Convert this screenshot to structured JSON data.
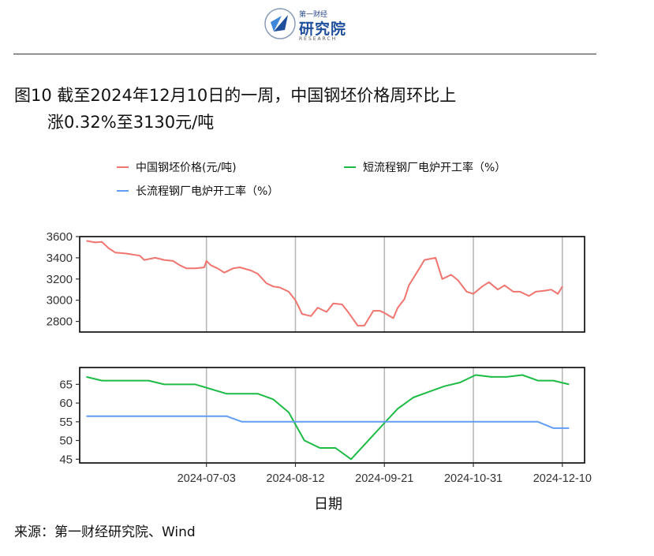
{
  "logo": {
    "top_text": "第一财经",
    "main_text": "研究院",
    "sub_text": "RESEARCH"
  },
  "title": {
    "line1": "图10  截至2024年12月10日的一周，中国钢坯价格周环比上",
    "line2": "涨0.32%至3130元/吨"
  },
  "source": "来源：第一财经研究院、Wind",
  "colors": {
    "billet": "#F0756F",
    "short_process": "#1DBB45",
    "long_process": "#629DF4",
    "grid": "#B8B8B8",
    "frame": "#000000"
  },
  "chart_data": [
    {
      "type": "line",
      "xlabel": "日期",
      "x_axis_type": "date",
      "xlim": [
        "2024-05-07",
        "2024-12-20"
      ],
      "x_tick_labels": [
        "2024-07-03",
        "2024-08-12",
        "2024-09-21",
        "2024-10-31",
        "2024-12-10"
      ],
      "ylim": [
        2700,
        3600
      ],
      "y_ticks": [
        2800,
        3000,
        3200,
        3400,
        3600
      ],
      "grid": "vertical",
      "series": [
        {
          "name": "中国钢坯价格(元/吨)",
          "color": "#F0756F",
          "points": [
            [
              "2024-05-10",
              3560
            ],
            [
              "2024-05-14",
              3545
            ],
            [
              "2024-05-17",
              3550
            ],
            [
              "2024-05-20",
              3490
            ],
            [
              "2024-05-23",
              3450
            ],
            [
              "2024-05-28",
              3440
            ],
            [
              "2024-06-03",
              3420
            ],
            [
              "2024-06-05",
              3380
            ],
            [
              "2024-06-10",
              3400
            ],
            [
              "2024-06-14",
              3380
            ],
            [
              "2024-06-18",
              3370
            ],
            [
              "2024-06-21",
              3330
            ],
            [
              "2024-06-24",
              3300
            ],
            [
              "2024-06-28",
              3300
            ],
            [
              "2024-07-02",
              3310
            ],
            [
              "2024-07-03",
              3370
            ],
            [
              "2024-07-05",
              3330
            ],
            [
              "2024-07-08",
              3300
            ],
            [
              "2024-07-11",
              3260
            ],
            [
              "2024-07-15",
              3300
            ],
            [
              "2024-07-18",
              3310
            ],
            [
              "2024-07-23",
              3280
            ],
            [
              "2024-07-26",
              3250
            ],
            [
              "2024-07-30",
              3160
            ],
            [
              "2024-08-02",
              3130
            ],
            [
              "2024-08-05",
              3120
            ],
            [
              "2024-08-09",
              3080
            ],
            [
              "2024-08-12",
              3000
            ],
            [
              "2024-08-15",
              2870
            ],
            [
              "2024-08-19",
              2850
            ],
            [
              "2024-08-22",
              2930
            ],
            [
              "2024-08-26",
              2890
            ],
            [
              "2024-08-29",
              2970
            ],
            [
              "2024-09-02",
              2960
            ],
            [
              "2024-09-05",
              2880
            ],
            [
              "2024-09-09",
              2760
            ],
            [
              "2024-09-12",
              2760
            ],
            [
              "2024-09-16",
              2900
            ],
            [
              "2024-09-19",
              2900
            ],
            [
              "2024-09-21",
              2880
            ],
            [
              "2024-09-25",
              2830
            ],
            [
              "2024-09-27",
              2930
            ],
            [
              "2024-09-30",
              3010
            ],
            [
              "2024-10-02",
              3140
            ],
            [
              "2024-10-07",
              3310
            ],
            [
              "2024-10-09",
              3380
            ],
            [
              "2024-10-14",
              3400
            ],
            [
              "2024-10-17",
              3200
            ],
            [
              "2024-10-21",
              3240
            ],
            [
              "2024-10-24",
              3190
            ],
            [
              "2024-10-28",
              3080
            ],
            [
              "2024-10-31",
              3060
            ],
            [
              "2024-11-04",
              3130
            ],
            [
              "2024-11-07",
              3170
            ],
            [
              "2024-11-11",
              3100
            ],
            [
              "2024-11-14",
              3140
            ],
            [
              "2024-11-18",
              3080
            ],
            [
              "2024-11-21",
              3080
            ],
            [
              "2024-11-25",
              3040
            ],
            [
              "2024-11-28",
              3080
            ],
            [
              "2024-12-02",
              3090
            ],
            [
              "2024-12-05",
              3100
            ],
            [
              "2024-12-08",
              3060
            ],
            [
              "2024-12-10",
              3130
            ]
          ]
        }
      ]
    },
    {
      "type": "line",
      "xlabel": "日期",
      "x_axis_type": "date",
      "xlim": [
        "2024-05-07",
        "2024-12-20"
      ],
      "x_tick_labels": [
        "2024-07-03",
        "2024-08-12",
        "2024-09-21",
        "2024-10-31",
        "2024-12-10"
      ],
      "ylim": [
        44,
        69.5
      ],
      "y_ticks": [
        45,
        50,
        55,
        60,
        65
      ],
      "grid": "vertical",
      "series": [
        {
          "name": "短流程钢厂电炉开工率（%）",
          "color": "#1DBB45",
          "points": [
            [
              "2024-05-10",
              67
            ],
            [
              "2024-05-17",
              66
            ],
            [
              "2024-06-07",
              66
            ],
            [
              "2024-06-14",
              65
            ],
            [
              "2024-06-28",
              65
            ],
            [
              "2024-07-12",
              62.5
            ],
            [
              "2024-07-26",
              62.5
            ],
            [
              "2024-08-02",
              61
            ],
            [
              "2024-08-09",
              57.5
            ],
            [
              "2024-08-16",
              50
            ],
            [
              "2024-08-23",
              48
            ],
            [
              "2024-08-30",
              48
            ],
            [
              "2024-09-06",
              45
            ],
            [
              "2024-09-13",
              49.5
            ],
            [
              "2024-09-20",
              54
            ],
            [
              "2024-09-27",
              58.5
            ],
            [
              "2024-10-04",
              61.5
            ],
            [
              "2024-10-11",
              63
            ],
            [
              "2024-10-18",
              64.5
            ],
            [
              "2024-10-25",
              65.5
            ],
            [
              "2024-11-01",
              67.5
            ],
            [
              "2024-11-08",
              67
            ],
            [
              "2024-11-15",
              67
            ],
            [
              "2024-11-22",
              67.5
            ],
            [
              "2024-11-29",
              66
            ],
            [
              "2024-12-06",
              66
            ],
            [
              "2024-12-13",
              65
            ]
          ]
        },
        {
          "name": "长流程钢厂电炉开工率（%）",
          "color": "#629DF4",
          "points": [
            [
              "2024-05-10",
              56.5
            ],
            [
              "2024-07-12",
              56.5
            ],
            [
              "2024-07-19",
              55
            ],
            [
              "2024-11-29",
              55
            ],
            [
              "2024-12-06",
              53.3
            ],
            [
              "2024-12-13",
              53.3
            ]
          ]
        }
      ]
    }
  ]
}
